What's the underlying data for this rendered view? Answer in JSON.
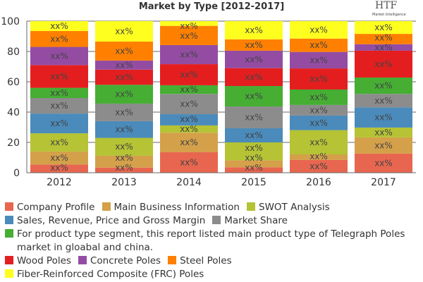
{
  "chart_data": {
    "type": "bar",
    "stacked": true,
    "title": "Market by Type [2012-2017]",
    "categories": [
      "2012",
      "2013",
      "2014",
      "2015",
      "2016",
      "2017"
    ],
    "ylim": [
      0,
      100
    ],
    "yticks": [
      "0",
      "20",
      "40",
      "60",
      "80",
      "100"
    ],
    "grid": true,
    "legend_position": "bottom",
    "data_label": "xx%",
    "series": [
      {
        "name": "Company Profile",
        "color": "#E8664F",
        "values": [
          5.4,
          3.4,
          13.5,
          3.6,
          8.4,
          12.6
        ]
      },
      {
        "name": "Main Business Information",
        "color": "#D4A04A",
        "values": [
          8.6,
          7.8,
          12.9,
          4.6,
          3.7,
          10.7
        ]
      },
      {
        "name": "SWOT Analysis",
        "color": "#B5C334",
        "values": [
          12,
          11.8,
          4.8,
          11.8,
          16,
          6.5
        ]
      },
      {
        "name": "Sales, Revenue, Price and Gross Margin",
        "color": "#4A8BBB",
        "values": [
          13,
          11,
          7.4,
          9.3,
          9.6,
          13.3
        ]
      },
      {
        "name": "Market Share",
        "color": "#8C8C8C",
        "values": [
          10.3,
          11.6,
          13.4,
          14.4,
          7,
          8.9
        ]
      },
      {
        "name": "For product type segment, this report listed main product type of Telegraph Poles market in gloabal and china.",
        "color": "#45AE33",
        "values": [
          6.7,
          12.4,
          5.7,
          13.5,
          10.2,
          10.8
        ]
      },
      {
        "name": "Wood Poles",
        "color": "#E41E1F",
        "values": [
          15,
          10,
          13.9,
          11.8,
          13.9,
          17.7
        ]
      },
      {
        "name": "Concrete Poles",
        "color": "#944CA3",
        "values": [
          12,
          6,
          12.6,
          11.5,
          10.9,
          4.3
        ]
      },
      {
        "name": "Steel Poles",
        "color": "#FF8000",
        "values": [
          10.5,
          12.5,
          12.7,
          7.5,
          8.8,
          6.8
        ]
      },
      {
        "name": "Fiber-Reinforced Composite (FRC) Poles",
        "color": "#FFFF1F",
        "values": [
          6.5,
          13.5,
          3.1,
          12,
          11.5,
          8.4
        ]
      }
    ]
  },
  "logo": {
    "text": "HTF",
    "subtext": "Market Intelligence"
  }
}
